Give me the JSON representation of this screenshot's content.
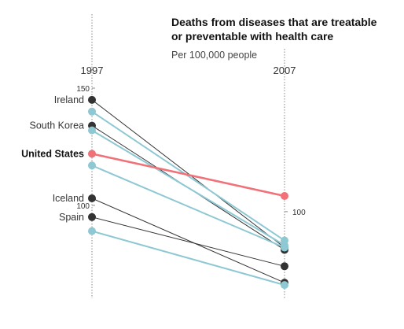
{
  "chart_data": {
    "type": "slope",
    "title_line1": "Deaths from diseases that are treatable",
    "title_line2": "or preventable with health care",
    "subtitle": "Per 100,000 people",
    "x": [
      "1997",
      "2007"
    ],
    "ylim": [
      60,
      150
    ],
    "ticks_left": [
      {
        "value": 150,
        "label": "150"
      },
      {
        "value": 100,
        "label": "100"
      }
    ],
    "ticks_right": [
      {
        "value": 100,
        "label": "100"
      }
    ],
    "colors": {
      "other": "#333333",
      "comparison": "#8ec8d3",
      "highlight": "#f07178",
      "axis": "#888888"
    },
    "series": [
      {
        "name": "",
        "kind": "comparison",
        "values": [
          89,
          66
        ]
      },
      {
        "name": "Spain",
        "kind": "other",
        "values": [
          95,
          74
        ]
      },
      {
        "name": "Iceland",
        "kind": "other",
        "values": [
          103,
          67
        ]
      },
      {
        "name": "",
        "kind": "comparison",
        "values": [
          117,
          82
        ]
      },
      {
        "name": "United States",
        "kind": "highlight",
        "values": [
          122,
          104
        ]
      },
      {
        "name": "",
        "kind": "comparison",
        "values": [
          132,
          83
        ]
      },
      {
        "name": "South Korea",
        "kind": "other",
        "values": [
          134,
          81
        ]
      },
      {
        "name": "",
        "kind": "comparison",
        "values": [
          140,
          85
        ]
      },
      {
        "name": "Ireland",
        "kind": "other",
        "values": [
          145,
          82
        ]
      }
    ]
  }
}
